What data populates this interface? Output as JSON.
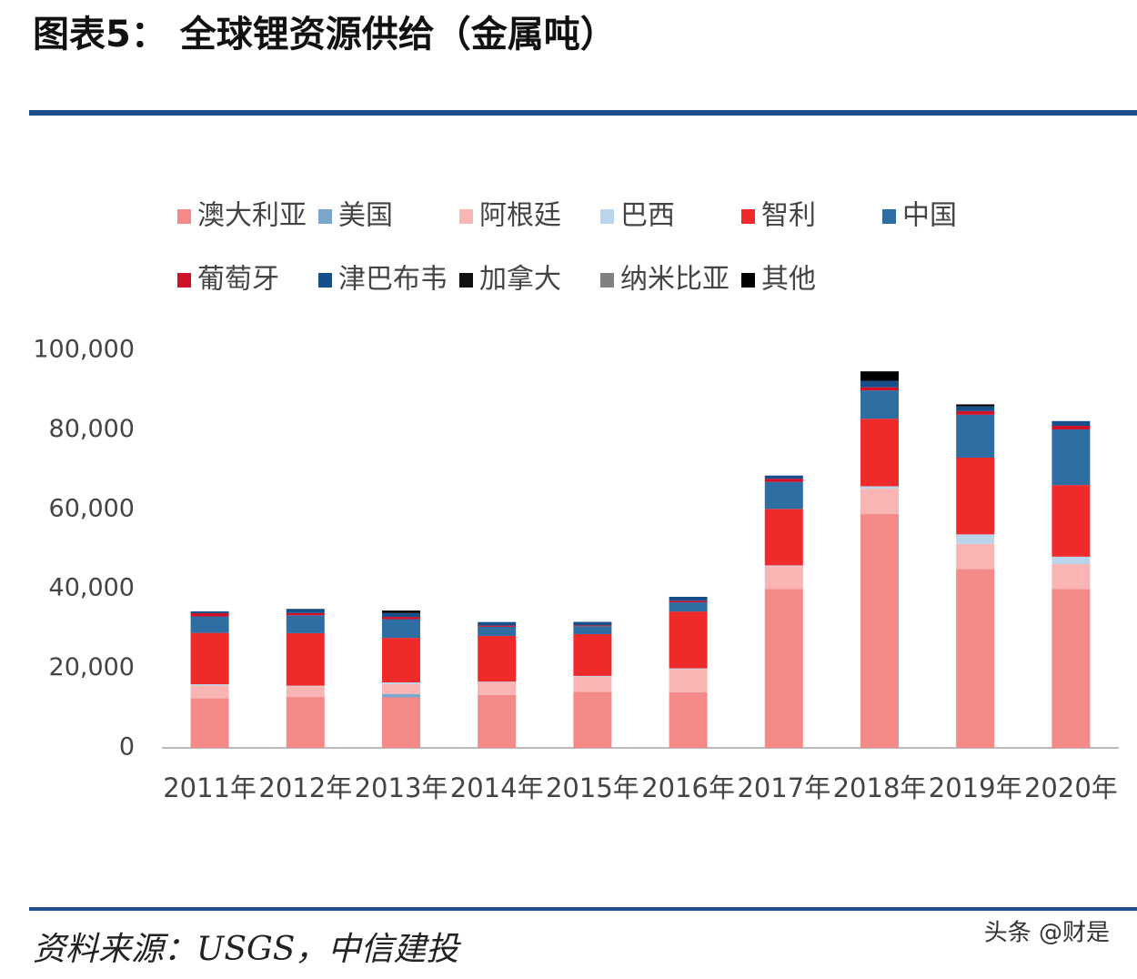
{
  "header": {
    "title": "图表5：  全球锂资源供给（金属吨）"
  },
  "chart_data": {
    "type": "stacked-bar",
    "categories": [
      "2011年",
      "2012年",
      "2013年",
      "2014年",
      "2015年",
      "2016年",
      "2017年",
      "2018年",
      "2019年",
      "2020年"
    ],
    "series": [
      {
        "name": "澳大利亚",
        "color": "#f48a88",
        "values": [
          12500,
          12800,
          12700,
          13300,
          14100,
          14000,
          40000,
          58800,
          45000,
          40000
        ]
      },
      {
        "name": "美国",
        "color": "#7ba7cf",
        "values": [
          0,
          0,
          870,
          0,
          0,
          0,
          0,
          0,
          0,
          0
        ]
      },
      {
        "name": "阿根廷",
        "color": "#f9b5b3",
        "values": [
          3200,
          2700,
          2500,
          3200,
          3800,
          5800,
          5700,
          6400,
          6300,
          6200
        ]
      },
      {
        "name": "巴西",
        "color": "#bcd4ea",
        "values": [
          320,
          150,
          400,
          160,
          200,
          200,
          200,
          600,
          2400,
          1900
        ]
      },
      {
        "name": "智利",
        "color": "#ee2a2a",
        "values": [
          12900,
          13200,
          11200,
          11500,
          10500,
          14300,
          14200,
          17000,
          19300,
          18000
        ]
      },
      {
        "name": "中国",
        "color": "#2f6ea3",
        "values": [
          4140,
          4500,
          4700,
          2300,
          2000,
          2300,
          6800,
          7100,
          10800,
          14000
        ]
      },
      {
        "name": "葡萄牙",
        "color": "#d01027",
        "values": [
          820,
          560,
          570,
          300,
          200,
          400,
          800,
          800,
          900,
          900
        ]
      },
      {
        "name": "津巴布韦",
        "color": "#174f8a",
        "values": [
          470,
          1060,
          1000,
          900,
          900,
          1000,
          800,
          1600,
          1200,
          1200
        ]
      },
      {
        "name": "加拿大",
        "color": "#111111",
        "values": [
          0,
          0,
          0,
          0,
          0,
          0,
          0,
          0,
          0,
          0
        ]
      },
      {
        "name": "纳米比亚",
        "color": "#808080",
        "values": [
          0,
          0,
          0,
          0,
          0,
          0,
          0,
          0,
          0,
          0
        ]
      },
      {
        "name": "其他",
        "color": "#000000",
        "values": [
          0,
          0,
          600,
          0,
          0,
          0,
          0,
          2400,
          500,
          0
        ]
      }
    ],
    "ylim": [
      0,
      100000
    ],
    "yticks": [
      0,
      {
        "value": 20000,
        "label": "20,000"
      },
      {
        "value": 40000,
        "label": "40,000"
      },
      {
        "value": 60000,
        "label": "60,000"
      },
      {
        "value": 80000,
        "label": "80,000"
      },
      {
        "value": 100000,
        "label": "100,000"
      }
    ],
    "grid": false
  },
  "footer": {
    "source": "资料来源：USGS，中信建投",
    "watermark": "头条 @财是"
  }
}
